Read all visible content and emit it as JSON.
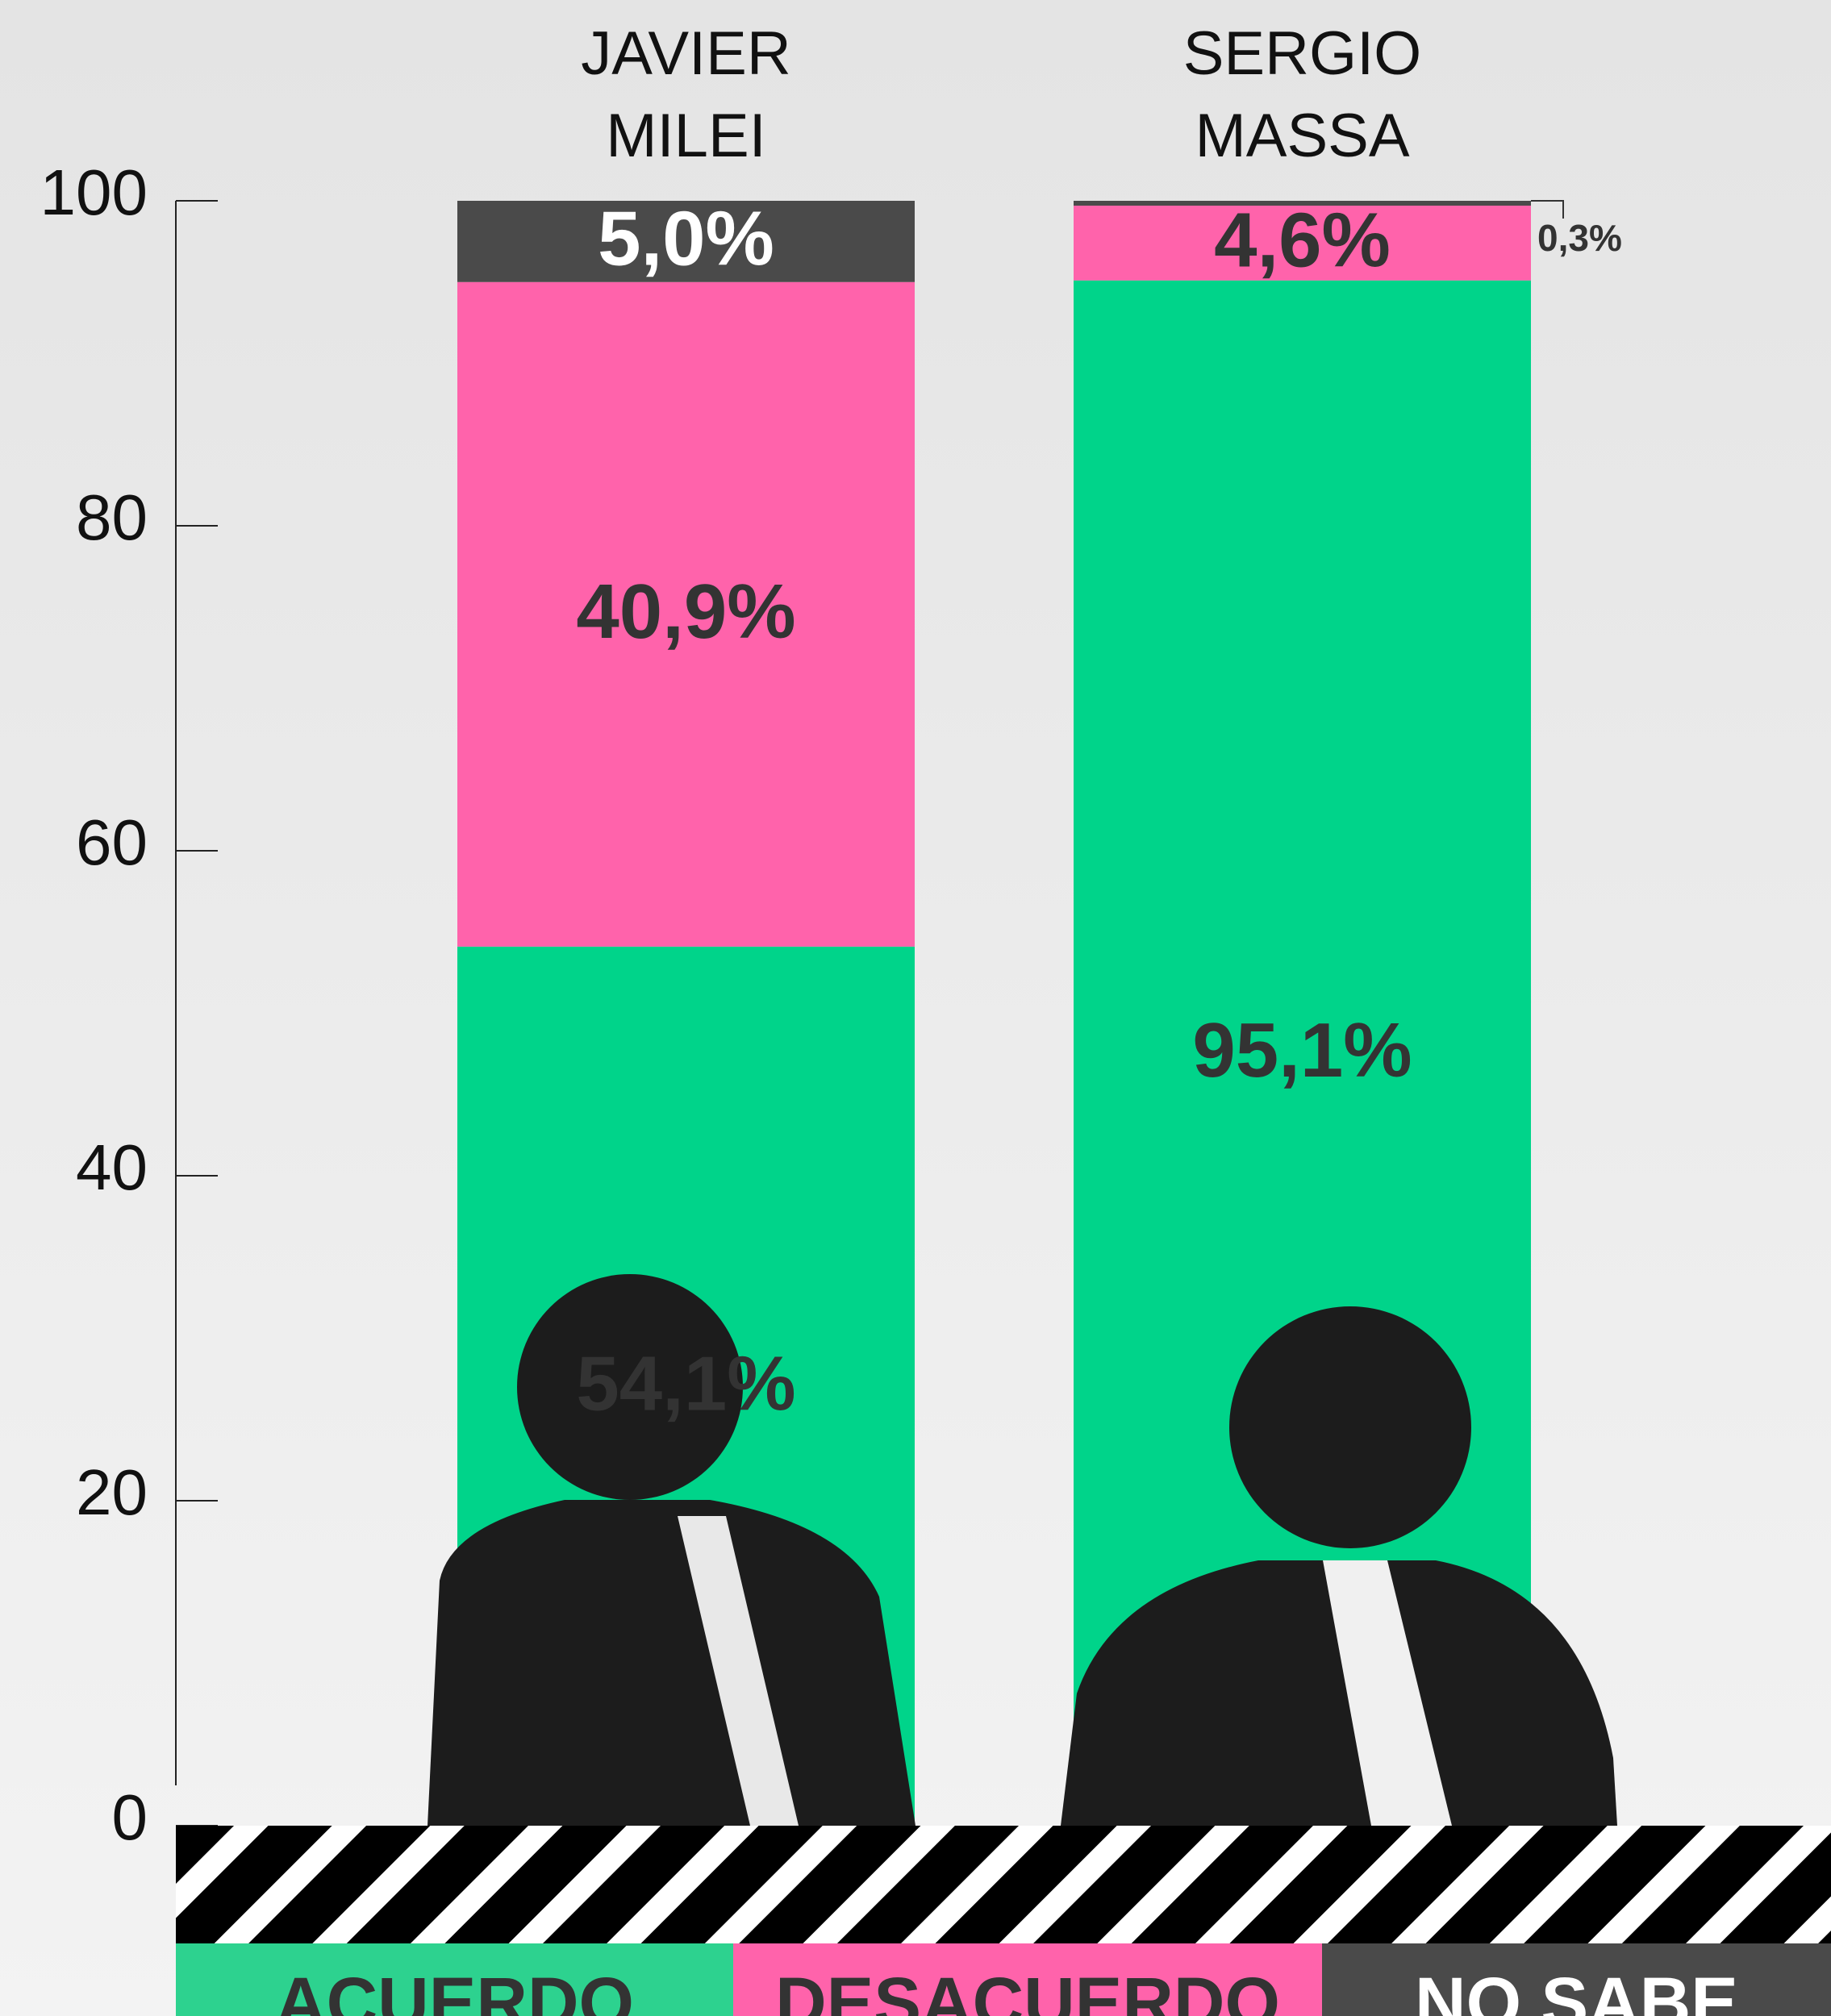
{
  "chart_data": {
    "type": "stacked_bar",
    "categories": [
      "JAVIER MILEI",
      "SERGIO MASSA"
    ],
    "series": [
      {
        "name": "ACUERDO",
        "color": "#00d48a",
        "values": [
          54.1,
          95.1
        ],
        "value_labels": [
          "54,1%",
          "95,1%"
        ]
      },
      {
        "name": "DESACUERDO",
        "color": "#ff63ab",
        "values": [
          40.9,
          4.6
        ],
        "value_labels": [
          "40,9%",
          "4,6%"
        ]
      },
      {
        "name": "NO SABE",
        "color": "#4a4a4a",
        "values": [
          5.0,
          0.3
        ],
        "value_labels": [
          "5,0%",
          "0,3%"
        ]
      }
    ],
    "ylim": [
      0,
      100
    ],
    "yticks": [
      0,
      20,
      40,
      60,
      80,
      100
    ]
  }
}
